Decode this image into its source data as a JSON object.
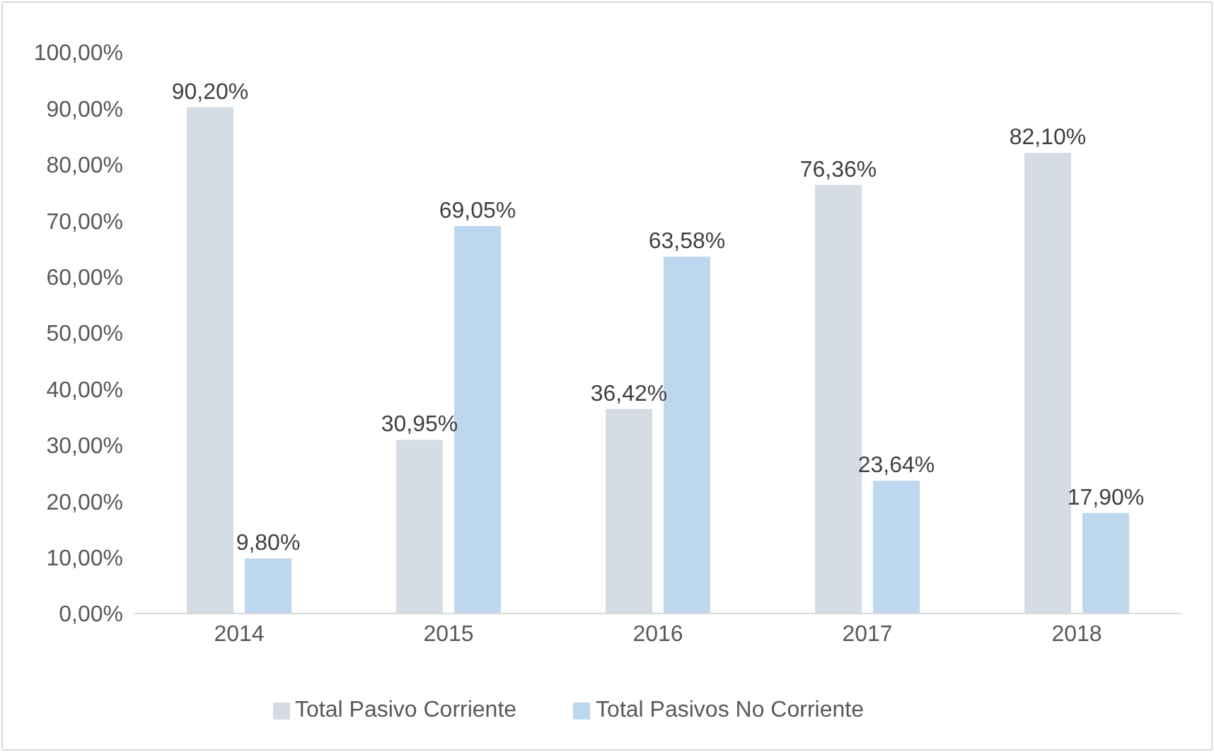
{
  "chart_data": {
    "type": "bar",
    "categories": [
      "2014",
      "2015",
      "2016",
      "2017",
      "2018"
    ],
    "series": [
      {
        "name": "Total Pasivo Corriente",
        "color": "#d6dce4",
        "values": [
          90.2,
          30.95,
          36.42,
          76.36,
          82.1
        ],
        "value_labels": [
          "90,20%",
          "30,95%",
          "36,42%",
          "76,36%",
          "82,10%"
        ]
      },
      {
        "name": "Total Pasivos No Corriente",
        "color": "#bdd7ee",
        "values": [
          9.8,
          69.05,
          63.58,
          23.64,
          17.9
        ],
        "value_labels": [
          "9,80%",
          "69,05%",
          "63,58%",
          "23,64%",
          "17,90%"
        ]
      }
    ],
    "ylim": [
      0,
      100
    ],
    "yticks": [
      {
        "value": 0,
        "label": "0,00%"
      },
      {
        "value": 10,
        "label": "10,00%"
      },
      {
        "value": 20,
        "label": "20,00%"
      },
      {
        "value": 30,
        "label": "30,00%"
      },
      {
        "value": 40,
        "label": "40,00%"
      },
      {
        "value": 50,
        "label": "50,00%"
      },
      {
        "value": 60,
        "label": "60,00%"
      },
      {
        "value": 70,
        "label": "70,00%"
      },
      {
        "value": 80,
        "label": "80,00%"
      },
      {
        "value": 90,
        "label": "90,00%"
      },
      {
        "value": 100,
        "label": "100,00%"
      }
    ],
    "grid": false,
    "legend": "bottom"
  }
}
